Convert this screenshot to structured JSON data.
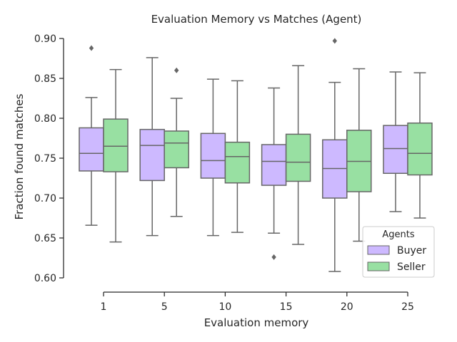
{
  "chart_data": {
    "type": "box",
    "title": "Evaluation Memory vs Matches (Agent)",
    "xlabel": "Evaluation memory",
    "ylabel": "Fraction found matches",
    "ylim": [
      0.6,
      0.9
    ],
    "yticks": [
      "0.60",
      "0.65",
      "0.70",
      "0.75",
      "0.80",
      "0.85",
      "0.90"
    ],
    "categories": [
      "1",
      "5",
      "10",
      "15",
      "20",
      "25"
    ],
    "legend": {
      "title": "Agents",
      "position": "lower-right"
    },
    "series": [
      {
        "name": "Buyer",
        "color": "#cdb9ff",
        "boxes": [
          {
            "whislo": 0.666,
            "q1": 0.734,
            "med": 0.756,
            "q3": 0.788,
            "whishi": 0.826,
            "fliers": [
              0.888
            ]
          },
          {
            "whislo": 0.653,
            "q1": 0.722,
            "med": 0.766,
            "q3": 0.786,
            "whishi": 0.876,
            "fliers": []
          },
          {
            "whislo": 0.653,
            "q1": 0.725,
            "med": 0.747,
            "q3": 0.781,
            "whishi": 0.849,
            "fliers": []
          },
          {
            "whislo": 0.656,
            "q1": 0.716,
            "med": 0.746,
            "q3": 0.767,
            "whishi": 0.838,
            "fliers": [
              0.626
            ]
          },
          {
            "whislo": 0.608,
            "q1": 0.7,
            "med": 0.737,
            "q3": 0.773,
            "whishi": 0.845,
            "fliers": [
              0.897
            ]
          },
          {
            "whislo": 0.683,
            "q1": 0.731,
            "med": 0.762,
            "q3": 0.791,
            "whishi": 0.858,
            "fliers": []
          }
        ]
      },
      {
        "name": "Seller",
        "color": "#98e0a2",
        "boxes": [
          {
            "whislo": 0.645,
            "q1": 0.733,
            "med": 0.765,
            "q3": 0.799,
            "whishi": 0.861,
            "fliers": []
          },
          {
            "whislo": 0.677,
            "q1": 0.738,
            "med": 0.769,
            "q3": 0.784,
            "whishi": 0.825,
            "fliers": [
              0.86
            ]
          },
          {
            "whislo": 0.657,
            "q1": 0.719,
            "med": 0.752,
            "q3": 0.77,
            "whishi": 0.847,
            "fliers": []
          },
          {
            "whislo": 0.642,
            "q1": 0.721,
            "med": 0.745,
            "q3": 0.78,
            "whishi": 0.866,
            "fliers": []
          },
          {
            "whislo": 0.646,
            "q1": 0.708,
            "med": 0.746,
            "q3": 0.785,
            "whishi": 0.862,
            "fliers": []
          },
          {
            "whislo": 0.675,
            "q1": 0.729,
            "med": 0.756,
            "q3": 0.794,
            "whishi": 0.857,
            "fliers": []
          }
        ]
      }
    ],
    "style": {
      "line_color": "#666666",
      "axis_color": "#262626"
    }
  }
}
